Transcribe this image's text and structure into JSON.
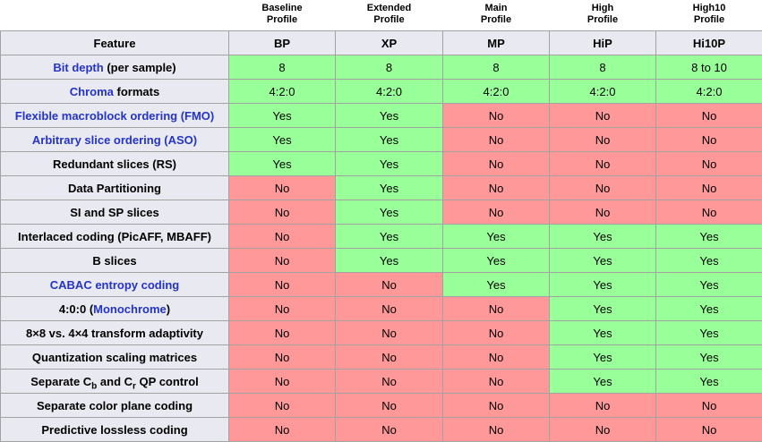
{
  "colors": {
    "yes_bg": "#99ff99",
    "no_bg": "#ff9999",
    "header_bg": "#e9e9f1",
    "border": "#a2a2a2",
    "link": "#2433c9"
  },
  "table": {
    "profiles": [
      {
        "top": "Baseline",
        "bottom": "Profile"
      },
      {
        "top": "Extended",
        "bottom": "Profile"
      },
      {
        "top": "Main",
        "bottom": "Profile"
      },
      {
        "top": "High",
        "bottom": "Profile"
      },
      {
        "top": "High10",
        "bottom": "Profile"
      }
    ],
    "column_headers": [
      "Feature",
      "BP",
      "XP",
      "MP",
      "HiP",
      "Hi10P"
    ],
    "rows": [
      {
        "feature": [
          {
            "t": "Bit depth",
            "link": true
          },
          {
            "t": " (per sample)"
          }
        ],
        "values": [
          "8",
          "8",
          "8",
          "8",
          "8 to 10"
        ],
        "cells": [
          "g",
          "g",
          "g",
          "g",
          "g"
        ]
      },
      {
        "feature": [
          {
            "t": "Chroma",
            "link": true
          },
          {
            "t": " formats"
          }
        ],
        "values": [
          "4:2:0",
          "4:2:0",
          "4:2:0",
          "4:2:0",
          "4:2:0"
        ],
        "cells": [
          "g",
          "g",
          "g",
          "g",
          "g"
        ]
      },
      {
        "feature": [
          {
            "t": "Flexible macroblock ordering (FMO)",
            "link": true
          }
        ],
        "values": [
          "Yes",
          "Yes",
          "No",
          "No",
          "No"
        ],
        "cells": [
          "g",
          "g",
          "r",
          "r",
          "r"
        ]
      },
      {
        "feature": [
          {
            "t": "Arbitrary slice ordering (ASO)",
            "link": true
          }
        ],
        "values": [
          "Yes",
          "Yes",
          "No",
          "No",
          "No"
        ],
        "cells": [
          "g",
          "g",
          "r",
          "r",
          "r"
        ]
      },
      {
        "feature": [
          {
            "t": "Redundant slices (RS)"
          }
        ],
        "values": [
          "Yes",
          "Yes",
          "No",
          "No",
          "No"
        ],
        "cells": [
          "g",
          "g",
          "r",
          "r",
          "r"
        ]
      },
      {
        "feature": [
          {
            "t": "Data Partitioning"
          }
        ],
        "values": [
          "No",
          "Yes",
          "No",
          "No",
          "No"
        ],
        "cells": [
          "r",
          "g",
          "r",
          "r",
          "r"
        ]
      },
      {
        "feature": [
          {
            "t": "SI and SP slices"
          }
        ],
        "values": [
          "No",
          "Yes",
          "No",
          "No",
          "No"
        ],
        "cells": [
          "r",
          "g",
          "r",
          "r",
          "r"
        ]
      },
      {
        "feature": [
          {
            "t": "Interlaced coding (PicAFF, MBAFF)"
          }
        ],
        "values": [
          "No",
          "Yes",
          "Yes",
          "Yes",
          "Yes"
        ],
        "cells": [
          "r",
          "g",
          "g",
          "g",
          "g"
        ]
      },
      {
        "feature": [
          {
            "t": "B slices"
          }
        ],
        "values": [
          "No",
          "Yes",
          "Yes",
          "Yes",
          "Yes"
        ],
        "cells": [
          "r",
          "g",
          "g",
          "g",
          "g"
        ]
      },
      {
        "feature": [
          {
            "t": "CABAC entropy coding",
            "link": true
          }
        ],
        "values": [
          "No",
          "No",
          "Yes",
          "Yes",
          "Yes"
        ],
        "cells": [
          "r",
          "r",
          "g",
          "g",
          "g"
        ]
      },
      {
        "feature": [
          {
            "t": "4:0:0 ("
          },
          {
            "t": "Monochrome",
            "link": true
          },
          {
            "t": ")"
          }
        ],
        "values": [
          "No",
          "No",
          "No",
          "Yes",
          "Yes"
        ],
        "cells": [
          "r",
          "r",
          "r",
          "g",
          "g"
        ]
      },
      {
        "feature": [
          {
            "t": "8×8 vs. 4×4 transform adaptivity"
          }
        ],
        "values": [
          "No",
          "No",
          "No",
          "Yes",
          "Yes"
        ],
        "cells": [
          "r",
          "r",
          "r",
          "g",
          "g"
        ]
      },
      {
        "feature": [
          {
            "t": "Quantization scaling matrices"
          }
        ],
        "values": [
          "No",
          "No",
          "No",
          "Yes",
          "Yes"
        ],
        "cells": [
          "r",
          "r",
          "r",
          "g",
          "g"
        ]
      },
      {
        "feature": [
          {
            "t": "Separate C"
          },
          {
            "t": "b",
            "sub": true
          },
          {
            "t": " and C"
          },
          {
            "t": "r",
            "sub": true
          },
          {
            "t": " QP control"
          }
        ],
        "values": [
          "No",
          "No",
          "No",
          "Yes",
          "Yes"
        ],
        "cells": [
          "r",
          "r",
          "r",
          "g",
          "g"
        ]
      },
      {
        "feature": [
          {
            "t": "Separate color plane coding"
          }
        ],
        "values": [
          "No",
          "No",
          "No",
          "No",
          "No"
        ],
        "cells": [
          "r",
          "r",
          "r",
          "r",
          "r"
        ]
      },
      {
        "feature": [
          {
            "t": "Predictive lossless coding"
          }
        ],
        "values": [
          "No",
          "No",
          "No",
          "No",
          "No"
        ],
        "cells": [
          "r",
          "r",
          "r",
          "r",
          "r"
        ]
      }
    ]
  }
}
